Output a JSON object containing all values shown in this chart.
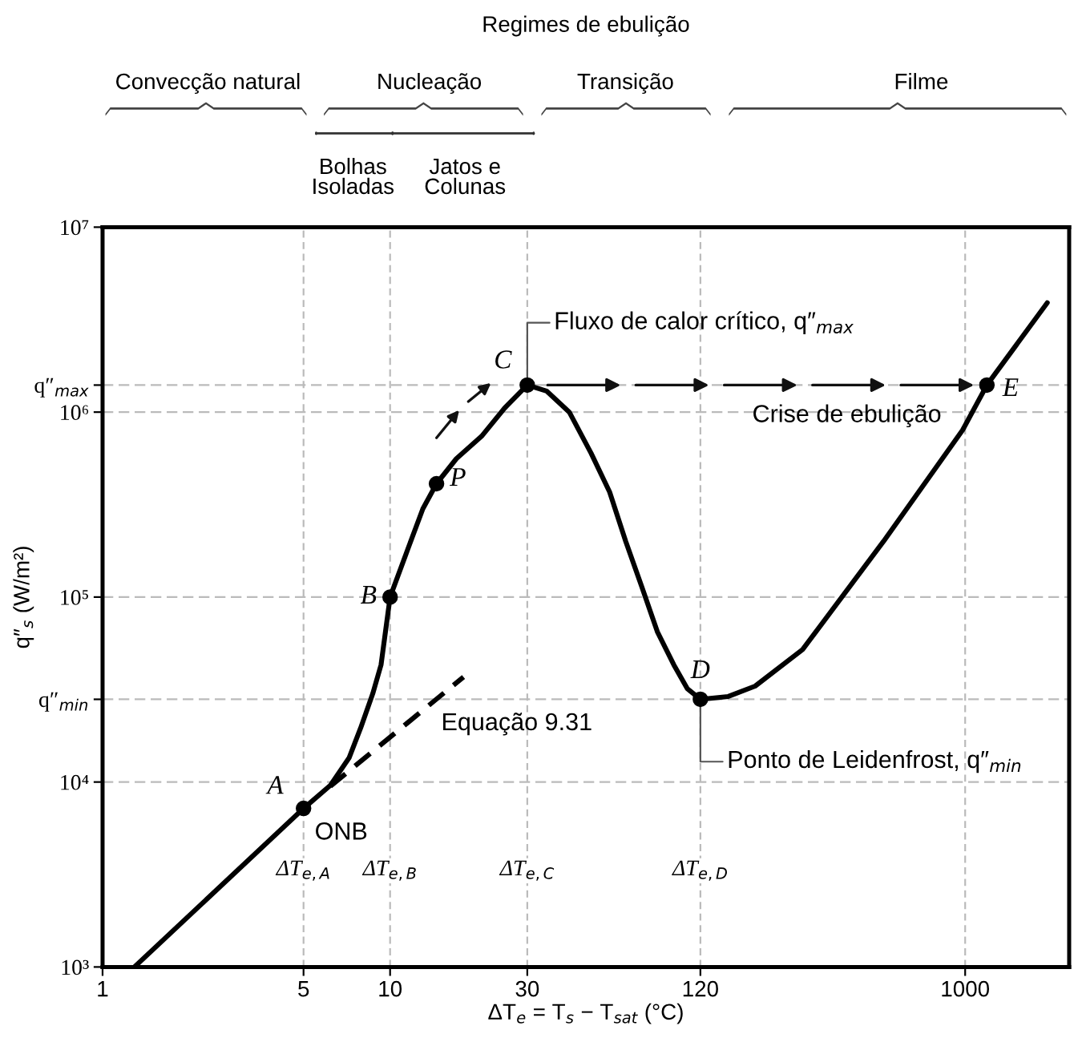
{
  "chart_data": {
    "type": "line",
    "title": "Regimes de ebulição",
    "xlabel": "ΔT$_{e}$ = T$_{s}$ − T$_{sat}$ (°C)",
    "ylabel": "q″$_{s}$ (W/m²)",
    "log": "xy",
    "xlim": [
      1,
      2300
    ],
    "ylim": [
      1000,
      10000000
    ],
    "xticks": [
      1,
      5,
      10,
      30,
      120,
      1000
    ],
    "yticks": [
      {
        "value": 1000,
        "label": "10³"
      },
      {
        "value": 10000,
        "label": "10⁴"
      },
      {
        "value": 28000,
        "label": "q″$_{min}$"
      },
      {
        "value": 100000,
        "label": "10⁵"
      },
      {
        "value": 1000000,
        "label": "10⁶"
      },
      {
        "value": 1400000,
        "label": "q″$_{max}$"
      },
      {
        "value": 10000000,
        "label": "10⁷"
      }
    ],
    "grid": "y",
    "legend": false,
    "series": [
      {
        "color": "#000000",
        "line_style": "solid",
        "x": [
          1.29,
          5,
          6.2,
          7.2,
          7.9,
          8.7,
          9.3,
          10,
          11.5,
          13,
          14.5,
          17,
          20.8,
          25,
          30,
          35,
          42,
          50,
          58,
          66,
          75,
          85,
          97,
          108,
          120,
          150,
          186,
          272,
          520,
          980,
          1190,
          1930
        ],
        "values": [
          1000,
          7200,
          9600,
          13500,
          19600,
          30000,
          43000,
          100000,
          180000,
          300000,
          410000,
          560000,
          740000,
          1050000,
          1400000,
          1300000,
          1000000,
          600000,
          370000,
          200000,
          114000,
          65000,
          43000,
          32000,
          28000,
          29000,
          33000,
          52000,
          200000,
          800000,
          1400000,
          3900000
        ]
      },
      {
        "type": "line",
        "color": "#000000",
        "line_style": "dashed",
        "x": [
          6.2,
          18
        ],
        "values": [
          9500,
          37000
        ]
      },
      {
        "type": "scatter",
        "color": "#000000",
        "marker": "circle",
        "x": [
          5,
          10,
          14.5,
          30,
          120,
          1190
        ],
        "values": [
          7200,
          100000,
          410000,
          1400000,
          28000,
          1400000
        ]
      }
    ],
    "ref_lines": [
      {
        "axis": "x",
        "value": 1000
      },
      {
        "axis": "x",
        "value": 5,
        "label": "ΔT$_{e,A}$"
      },
      {
        "axis": "x",
        "value": 10,
        "label": "ΔT$_{e,B}$"
      },
      {
        "axis": "x",
        "value": 30,
        "label": "ΔT$_{e,C}$"
      },
      {
        "axis": "x",
        "value": 120,
        "label": "ΔT$_{e,D}$"
      }
    ],
    "annotations": [
      {
        "text": "A",
        "x": 5,
        "y": 7200
      },
      {
        "text": "ONB",
        "x": 5,
        "y": 7200
      },
      {
        "text": "B",
        "x": 10,
        "y": 100000
      },
      {
        "text": "P",
        "x": 14.5,
        "y": 410000
      },
      {
        "text": "C",
        "x": 30,
        "y": 1400000
      },
      {
        "text": "D",
        "x": 120,
        "y": 28000
      },
      {
        "text": "E",
        "x": 1190,
        "y": 1400000
      },
      {
        "text": "Fluxo de calor crítico, q″$_{max}$",
        "x": 30,
        "y": 1400000
      },
      "Crise de ebulição",
      "Equação 9.31",
      {
        "text": "Ponto de Leidenfrost, q″$_{min}$",
        "x": 120,
        "y": 28000
      },
      "Convecção natural",
      "Nucleação",
      "Transição",
      "Filme",
      "Bolhas\nIsoladas",
      "Jatos e\nColunas"
    ]
  }
}
